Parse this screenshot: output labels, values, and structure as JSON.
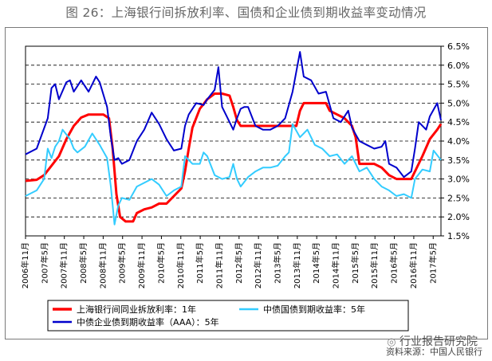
{
  "header": {
    "title": "图 26：上海银行间拆放利率、国债和企业债到期收益率变动情况"
  },
  "footer": {
    "source": "资料来源：中国人民银行",
    "watermark": "行业报告研究院"
  },
  "chart_data": {
    "type": "line",
    "ylim": [
      1.5,
      6.5
    ],
    "y_ticks": [
      "1.5%",
      "2.0%",
      "2.5%",
      "3.0%",
      "3.5%",
      "4.0%",
      "4.5%",
      "5.0%",
      "5.5%",
      "6.0%",
      "6.5%"
    ],
    "x_ticks": [
      "2006年11月",
      "2007年5月",
      "2007年11月",
      "2008年5月",
      "2008年11月",
      "2009年5月",
      "2009年11月",
      "2010年5月",
      "2010年11月",
      "2011年5月",
      "2011年11月",
      "2012年5月",
      "2012年11月",
      "2013年5月",
      "2013年11月",
      "2014年5月",
      "2014年11月",
      "2015年5月",
      "2015年11月",
      "2016年5月",
      "2016年11月",
      "2017年5月"
    ],
    "grid": "horizontal dashed",
    "legend_position": "bottom",
    "series": [
      {
        "name": "上海银行间同业拆放利率：1年",
        "color": "#ff0000",
        "values": [
          [
            0,
            2.95
          ],
          [
            3,
            2.98
          ],
          [
            5,
            3.1
          ],
          [
            7,
            3.35
          ],
          [
            9,
            3.6
          ],
          [
            11,
            4.05
          ],
          [
            13,
            4.4
          ],
          [
            15,
            4.62
          ],
          [
            17,
            4.7
          ],
          [
            19,
            4.7
          ],
          [
            21,
            4.7
          ],
          [
            22.5,
            4.6
          ],
          [
            23.5,
            3.8
          ],
          [
            24.5,
            2.6
          ],
          [
            25.5,
            2.0
          ],
          [
            27,
            1.88
          ],
          [
            29,
            1.88
          ],
          [
            30,
            2.1
          ],
          [
            32,
            2.2
          ],
          [
            34,
            2.25
          ],
          [
            36,
            2.35
          ],
          [
            38,
            2.35
          ],
          [
            40,
            2.55
          ],
          [
            42,
            2.75
          ],
          [
            43,
            3.2
          ],
          [
            44,
            3.8
          ],
          [
            45,
            4.35
          ],
          [
            47,
            4.85
          ],
          [
            49,
            5.1
          ],
          [
            51,
            5.25
          ],
          [
            53,
            5.25
          ],
          [
            55,
            5.2
          ],
          [
            56,
            4.9
          ],
          [
            57,
            4.55
          ],
          [
            58,
            4.4
          ],
          [
            62,
            4.4
          ],
          [
            66,
            4.4
          ],
          [
            70,
            4.4
          ],
          [
            73,
            4.4
          ],
          [
            74,
            4.8
          ],
          [
            75,
            5.0
          ],
          [
            78,
            5.0
          ],
          [
            81,
            5.0
          ],
          [
            82,
            4.8
          ],
          [
            84,
            4.7
          ],
          [
            86,
            4.6
          ],
          [
            88,
            4.4
          ],
          [
            89,
            4.1
          ],
          [
            90,
            3.4
          ],
          [
            94,
            3.4
          ],
          [
            96,
            3.3
          ],
          [
            98,
            3.1
          ],
          [
            100,
            3.0
          ],
          [
            104,
            3.0
          ],
          [
            105,
            3.2
          ],
          [
            107,
            3.6
          ],
          [
            109,
            4.05
          ],
          [
            111,
            4.3
          ],
          [
            112,
            4.45
          ]
        ]
      },
      {
        "name": "中债国债到期收益率：5年",
        "color": "#33ccff",
        "values": [
          [
            0,
            2.55
          ],
          [
            3,
            2.7
          ],
          [
            5,
            3.0
          ],
          [
            6,
            3.8
          ],
          [
            7,
            3.55
          ],
          [
            8,
            3.85
          ],
          [
            9,
            4.0
          ],
          [
            10,
            4.3
          ],
          [
            12,
            4.05
          ],
          [
            13,
            3.8
          ],
          [
            14,
            3.7
          ],
          [
            16,
            3.85
          ],
          [
            18,
            4.2
          ],
          [
            20,
            3.9
          ],
          [
            22,
            3.55
          ],
          [
            23,
            2.8
          ],
          [
            24,
            1.8
          ],
          [
            25,
            2.3
          ],
          [
            26,
            2.5
          ],
          [
            28,
            2.45
          ],
          [
            30,
            2.8
          ],
          [
            32,
            2.9
          ],
          [
            34,
            3.0
          ],
          [
            36,
            2.85
          ],
          [
            38,
            2.55
          ],
          [
            40,
            2.7
          ],
          [
            42,
            2.8
          ],
          [
            43,
            3.6
          ],
          [
            45,
            3.4
          ],
          [
            47,
            3.4
          ],
          [
            48,
            3.7
          ],
          [
            49,
            3.6
          ],
          [
            51,
            3.1
          ],
          [
            53,
            3.0
          ],
          [
            55,
            3.05
          ],
          [
            56,
            3.4
          ],
          [
            57,
            3.0
          ],
          [
            58,
            2.8
          ],
          [
            60,
            3.05
          ],
          [
            62,
            3.2
          ],
          [
            64,
            3.3
          ],
          [
            66,
            3.3
          ],
          [
            68,
            3.35
          ],
          [
            70,
            3.6
          ],
          [
            71,
            3.7
          ],
          [
            72,
            4.45
          ],
          [
            74,
            4.1
          ],
          [
            76,
            4.3
          ],
          [
            78,
            3.9
          ],
          [
            80,
            3.8
          ],
          [
            82,
            3.6
          ],
          [
            84,
            3.65
          ],
          [
            86,
            3.4
          ],
          [
            88,
            3.6
          ],
          [
            90,
            3.2
          ],
          [
            92,
            3.3
          ],
          [
            94,
            3.0
          ],
          [
            96,
            2.8
          ],
          [
            98,
            2.7
          ],
          [
            100,
            2.55
          ],
          [
            102,
            2.6
          ],
          [
            104,
            2.5
          ],
          [
            105,
            3.0
          ],
          [
            107,
            3.25
          ],
          [
            109,
            3.2
          ],
          [
            110,
            3.75
          ],
          [
            112,
            3.5
          ]
        ]
      },
      {
        "name": "中债企业债到期收益率（AAA）：5年",
        "color": "#0000cc",
        "values": [
          [
            0,
            3.65
          ],
          [
            3,
            3.8
          ],
          [
            6,
            4.6
          ],
          [
            7,
            5.4
          ],
          [
            8,
            5.5
          ],
          [
            9,
            5.1
          ],
          [
            11,
            5.55
          ],
          [
            12,
            5.6
          ],
          [
            13,
            5.3
          ],
          [
            15,
            5.6
          ],
          [
            17,
            5.3
          ],
          [
            19,
            5.7
          ],
          [
            20,
            5.55
          ],
          [
            22,
            4.9
          ],
          [
            23,
            4.1
          ],
          [
            24,
            3.5
          ],
          [
            25,
            3.55
          ],
          [
            26,
            3.4
          ],
          [
            28,
            3.5
          ],
          [
            30,
            4.0
          ],
          [
            32,
            4.3
          ],
          [
            34,
            4.75
          ],
          [
            36,
            4.45
          ],
          [
            38,
            4.05
          ],
          [
            40,
            3.75
          ],
          [
            42,
            3.8
          ],
          [
            43,
            4.4
          ],
          [
            44,
            4.7
          ],
          [
            46,
            5.0
          ],
          [
            48,
            4.95
          ],
          [
            49,
            5.1
          ],
          [
            51,
            5.35
          ],
          [
            52,
            5.95
          ],
          [
            53,
            4.9
          ],
          [
            54,
            4.7
          ],
          [
            56,
            4.3
          ],
          [
            57,
            4.6
          ],
          [
            58,
            4.85
          ],
          [
            59,
            4.9
          ],
          [
            60,
            4.9
          ],
          [
            62,
            4.4
          ],
          [
            64,
            4.3
          ],
          [
            66,
            4.3
          ],
          [
            68,
            4.4
          ],
          [
            70,
            4.6
          ],
          [
            72,
            5.3
          ],
          [
            74,
            6.35
          ],
          [
            75,
            5.7
          ],
          [
            77,
            5.6
          ],
          [
            79,
            5.25
          ],
          [
            81,
            5.3
          ],
          [
            83,
            4.6
          ],
          [
            85,
            4.5
          ],
          [
            87,
            4.8
          ],
          [
            88,
            4.35
          ],
          [
            90,
            4.0
          ],
          [
            92,
            3.9
          ],
          [
            94,
            3.8
          ],
          [
            96,
            3.85
          ],
          [
            97,
            4.0
          ],
          [
            98,
            3.4
          ],
          [
            100,
            3.3
          ],
          [
            102,
            3.05
          ],
          [
            104,
            3.2
          ],
          [
            105,
            3.8
          ],
          [
            106,
            4.5
          ],
          [
            108,
            4.3
          ],
          [
            109,
            4.65
          ],
          [
            111,
            5.0
          ],
          [
            112,
            4.55
          ]
        ]
      }
    ]
  }
}
